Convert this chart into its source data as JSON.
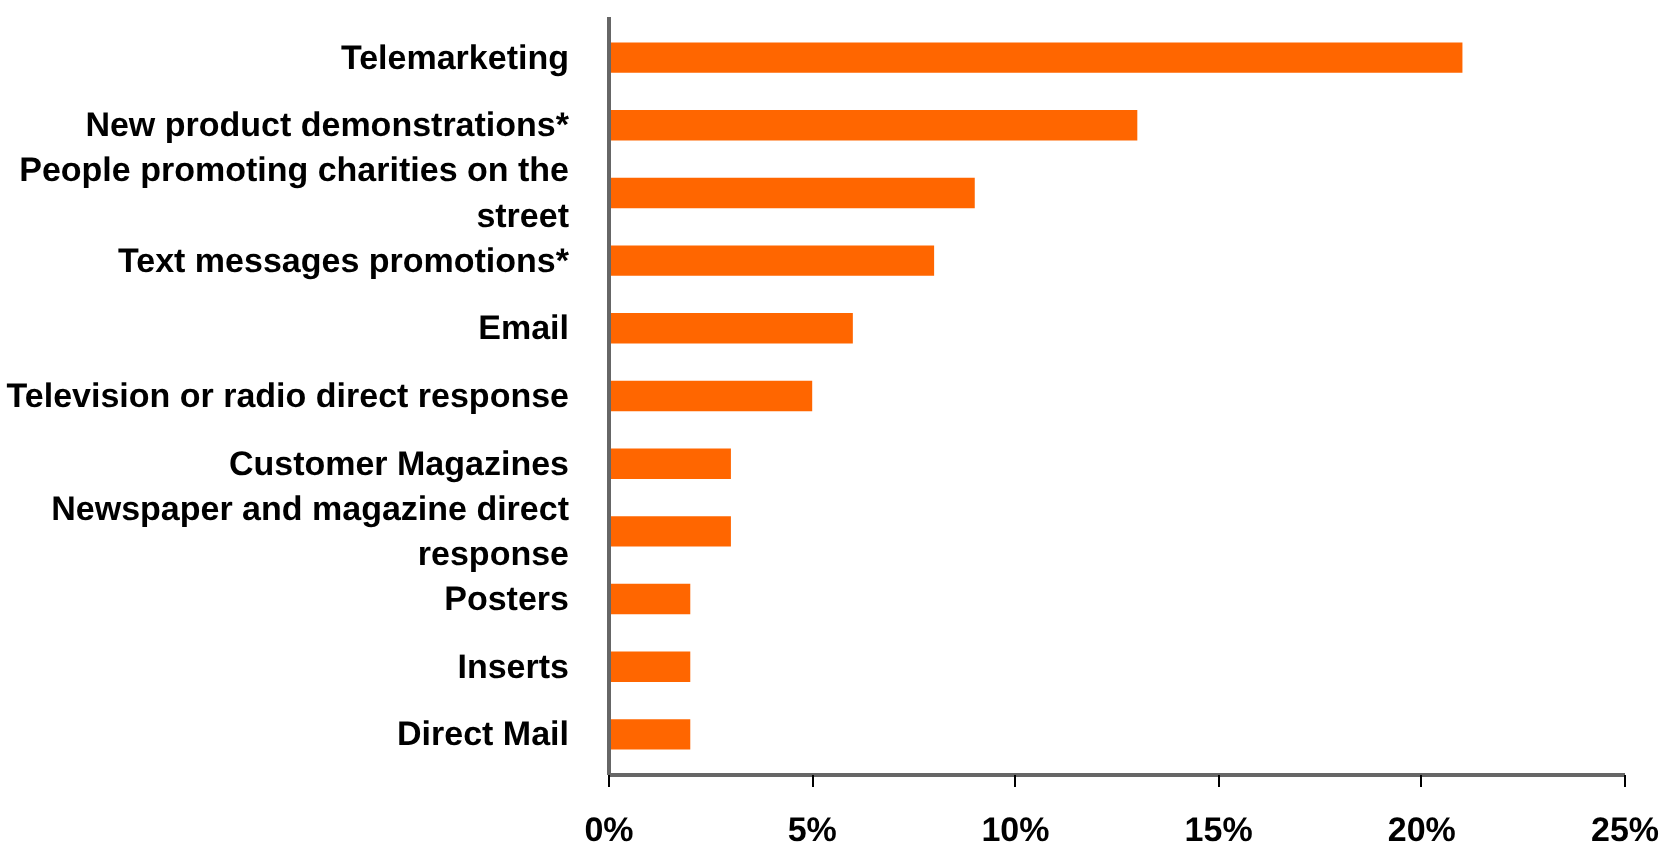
{
  "chart_data": {
    "type": "bar",
    "orientation": "horizontal",
    "categories": [
      "Telemarketing",
      "New product demonstrations*",
      "People promoting charities on the street",
      "Text messages promotions*",
      "Email",
      "Television or radio direct response",
      "Customer Magazines",
      "Newspaper and magazine direct response",
      "Posters",
      "Inserts",
      "Direct Mail"
    ],
    "values": [
      21,
      13,
      9,
      8,
      6,
      5,
      3,
      3,
      2,
      2,
      2
    ],
    "color": "#ff6600",
    "xlim": [
      0,
      25
    ],
    "xticks": [
      {
        "value": 0,
        "label": "0%"
      },
      {
        "value": 5,
        "label": "5%"
      },
      {
        "value": 10,
        "label": "10%"
      },
      {
        "value": 15,
        "label": "15%"
      },
      {
        "value": 20,
        "label": "20%"
      },
      {
        "value": 25,
        "label": "25%"
      }
    ],
    "grid": false
  }
}
